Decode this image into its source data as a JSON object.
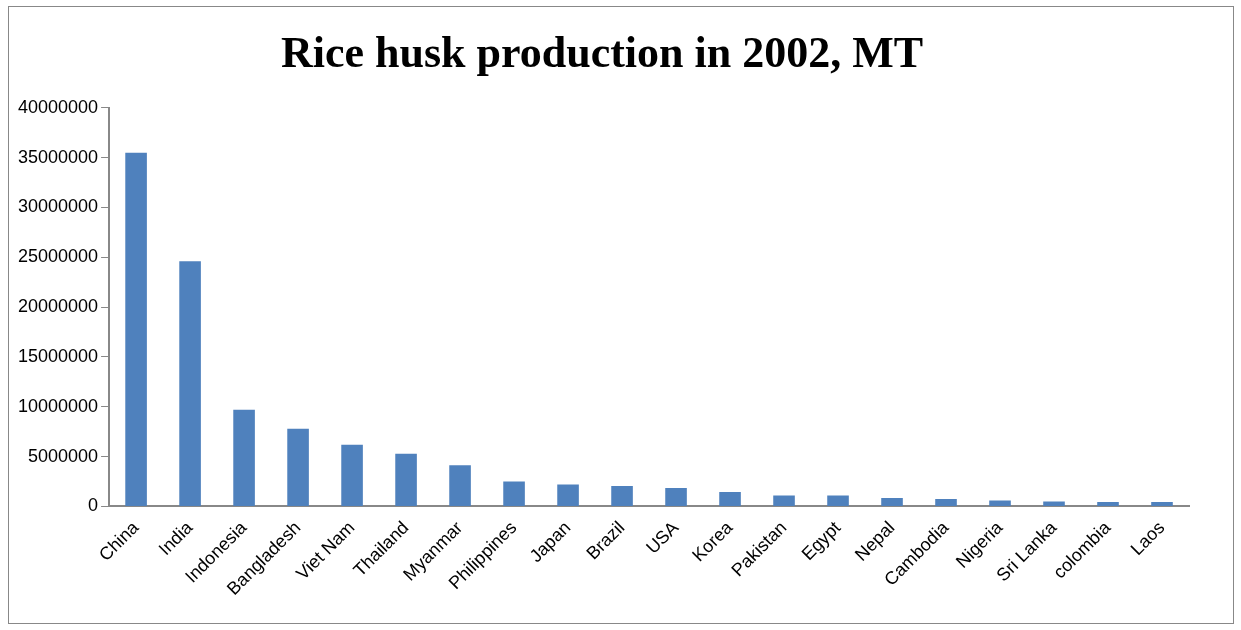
{
  "chart_data": {
    "type": "bar",
    "title": "Rice husk production in 2002, MT",
    "categories": [
      "China",
      "India",
      "Indonesia",
      "Bangladesh",
      "Viet Nam",
      "Thailand",
      "Myanmar",
      "Philippines",
      "Japan",
      "Brazil",
      "USA",
      "Korea",
      "Pakistan",
      "Egypt",
      "Nepal",
      "Cambodia",
      "Nigeria",
      "Sri Lanka",
      "colombia",
      "Laos"
    ],
    "values": [
      35500000,
      24600000,
      9700000,
      7800000,
      6200000,
      5300000,
      4150000,
      2500000,
      2200000,
      2050000,
      1850000,
      1450000,
      1100000,
      1100000,
      850000,
      750000,
      600000,
      500000,
      450000,
      450000
    ],
    "color": "#4f81bd",
    "ylim": [
      0,
      40000000
    ],
    "yticks": [
      0,
      5000000,
      10000000,
      15000000,
      20000000,
      25000000,
      30000000,
      35000000,
      40000000
    ],
    "grid": false,
    "legend": false
  }
}
